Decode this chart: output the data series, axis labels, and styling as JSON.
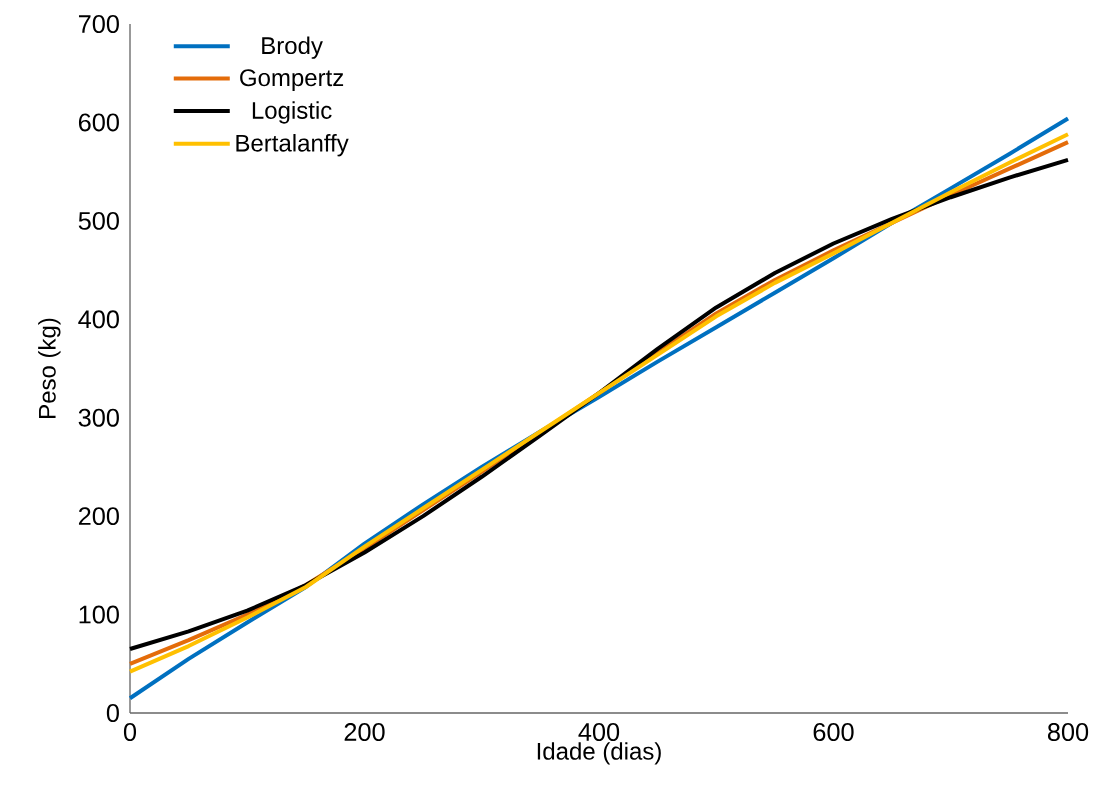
{
  "chart_data": {
    "type": "line",
    "xlabel": "Idade (dias)",
    "ylabel": "Peso (kg)",
    "x": [
      0,
      50,
      100,
      150,
      200,
      250,
      300,
      350,
      400,
      450,
      500,
      550,
      600,
      650,
      700,
      750,
      800
    ],
    "xlim": [
      0,
      800
    ],
    "ylim": [
      0,
      700
    ],
    "xticks": [
      0,
      200,
      400,
      600,
      800
    ],
    "yticks": [
      0,
      100,
      200,
      300,
      400,
      500,
      600,
      700
    ],
    "legend": "top left",
    "series": [
      {
        "name": "Brody",
        "color": "#0070c0",
        "values": [
          15,
          55,
          92,
          128,
          172,
          212,
          250,
          286,
          321,
          357,
          392,
          427,
          462,
          498,
          533,
          568,
          604
        ]
      },
      {
        "name": "Gompertz",
        "color": "#e46c0a",
        "values": [
          50,
          74,
          100,
          130,
          167,
          206,
          245,
          285,
          325,
          366,
          406,
          440,
          470,
          498,
          526,
          553,
          580
        ]
      },
      {
        "name": "Logistic",
        "color": "#000000",
        "values": [
          65,
          83,
          104,
          130,
          163,
          200,
          240,
          282,
          325,
          370,
          412,
          447,
          477,
          502,
          524,
          544,
          562
        ]
      },
      {
        "name": "Bertalanffy",
        "color": "#ffc000",
        "values": [
          42,
          68,
          97,
          128,
          169,
          208,
          247,
          286,
          325,
          364,
          403,
          437,
          467,
          498,
          529,
          559,
          588
        ]
      }
    ]
  }
}
